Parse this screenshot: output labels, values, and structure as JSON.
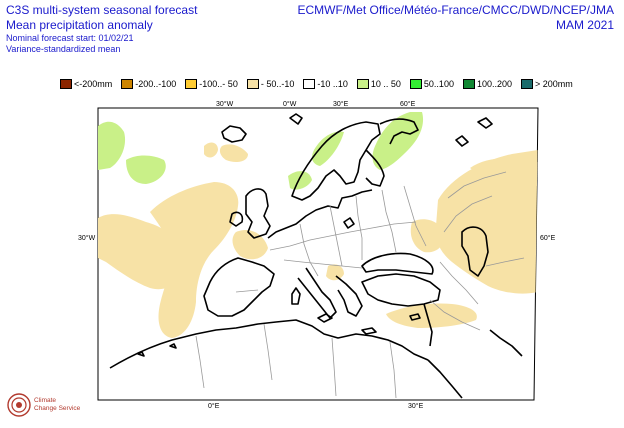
{
  "title": {
    "line1": "C3S multi-system seasonal forecast",
    "line2": "Mean precipitation anomaly",
    "line3": "Nominal forecast start: 01/02/21",
    "line4": "Variance-standardized mean"
  },
  "agencies": {
    "centres": "ECMWF/Met Office/Météo-France/CMCC/DWD/NCEP/JMA",
    "season": "MAM 2021"
  },
  "legend": [
    {
      "label": "<-200mm",
      "color": "#8b2500"
    },
    {
      "label": "-200..-100",
      "color": "#cd8500"
    },
    {
      "label": "-100..- 50",
      "color": "#ffcc33"
    },
    {
      "label": "- 50..-10",
      "color": "#f7e2a6"
    },
    {
      "label": "-10 ..10",
      "color": "#ffffff"
    },
    {
      "label": "10 .. 50",
      "color": "#c9f088"
    },
    {
      "label": "50..100",
      "color": "#33ee33"
    },
    {
      "label": "100..200",
      "color": "#118833"
    },
    {
      "label": "> 200mm",
      "color": "#1a6b6b"
    }
  ],
  "graticule_labels": {
    "top": [
      "30°W",
      "0°W",
      "30°E",
      "60°E"
    ],
    "bottom": [
      "0°E",
      "30°E"
    ],
    "left": "30°W",
    "right": "60°E"
  },
  "logo": {
    "icon": "copernicus-climate-logo-icon",
    "line1": "Climate",
    "line2": "Change Service"
  },
  "colors": {
    "title": "#1a1acc",
    "dry": "#f7e2a6",
    "wet": "#c9f088",
    "coast": "#000000",
    "border": "#999999"
  }
}
